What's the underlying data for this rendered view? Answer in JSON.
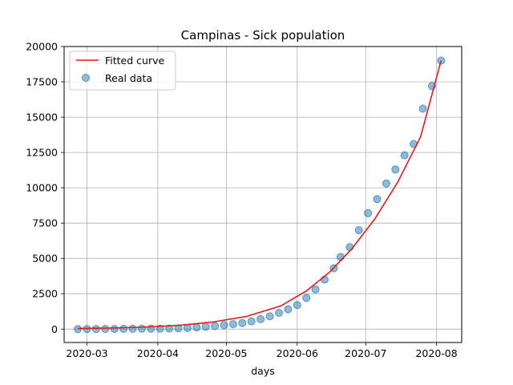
{
  "chart_data": {
    "type": "scatter",
    "title": "Campinas - Sick population",
    "xlabel": "days",
    "ylabel": "",
    "grid": true,
    "legend_position": "top-left",
    "x_axis": {
      "type": "date",
      "range": [
        "2020-02-20",
        "2020-08-12"
      ],
      "ticks": [
        {
          "date": "2020-03-01",
          "label": "2020-03"
        },
        {
          "date": "2020-04-01",
          "label": "2020-04"
        },
        {
          "date": "2020-05-01",
          "label": "2020-05"
        },
        {
          "date": "2020-06-01",
          "label": "2020-06"
        },
        {
          "date": "2020-07-01",
          "label": "2020-07"
        },
        {
          "date": "2020-08-01",
          "label": "2020-08"
        }
      ]
    },
    "y_axis": {
      "range": [
        -950,
        20000
      ],
      "ticks": [
        {
          "value": 0,
          "label": "0"
        },
        {
          "value": 2500,
          "label": "2500"
        },
        {
          "value": 5000,
          "label": "5000"
        },
        {
          "value": 7500,
          "label": "7500"
        },
        {
          "value": 10000,
          "label": "10000"
        },
        {
          "value": 12500,
          "label": "12500"
        },
        {
          "value": 15000,
          "label": "15000"
        },
        {
          "value": 17500,
          "label": "17500"
        },
        {
          "value": 20000,
          "label": "20000"
        }
      ]
    },
    "series": [
      {
        "name": "Fitted curve",
        "kind": "line",
        "color": "#e8191a",
        "points": [
          [
            "2020-02-26",
            40
          ],
          [
            "2020-03-10",
            70
          ],
          [
            "2020-03-25",
            130
          ],
          [
            "2020-04-10",
            260
          ],
          [
            "2020-04-25",
            500
          ],
          [
            "2020-05-10",
            900
          ],
          [
            "2020-05-25",
            1650
          ],
          [
            "2020-06-05",
            2700
          ],
          [
            "2020-06-15",
            4000
          ],
          [
            "2020-06-25",
            5700
          ],
          [
            "2020-07-05",
            7800
          ],
          [
            "2020-07-15",
            10400
          ],
          [
            "2020-07-25",
            13600
          ],
          [
            "2020-08-03",
            19000
          ]
        ]
      },
      {
        "name": "Real data",
        "kind": "scatter",
        "color": "#1f77b4",
        "points": [
          [
            "2020-02-26",
            0
          ],
          [
            "2020-03-01",
            2
          ],
          [
            "2020-03-05",
            5
          ],
          [
            "2020-03-09",
            8
          ],
          [
            "2020-03-13",
            12
          ],
          [
            "2020-03-17",
            15
          ],
          [
            "2020-03-21",
            20
          ],
          [
            "2020-03-25",
            25
          ],
          [
            "2020-03-29",
            30
          ],
          [
            "2020-04-02",
            35
          ],
          [
            "2020-04-06",
            40
          ],
          [
            "2020-04-10",
            55
          ],
          [
            "2020-04-14",
            80
          ],
          [
            "2020-04-18",
            120
          ],
          [
            "2020-04-22",
            170
          ],
          [
            "2020-04-26",
            220
          ],
          [
            "2020-04-30",
            280
          ],
          [
            "2020-05-04",
            350
          ],
          [
            "2020-05-08",
            430
          ],
          [
            "2020-05-12",
            550
          ],
          [
            "2020-05-16",
            700
          ],
          [
            "2020-05-20",
            900
          ],
          [
            "2020-05-24",
            1150
          ],
          [
            "2020-05-28",
            1400
          ],
          [
            "2020-06-01",
            1700
          ],
          [
            "2020-06-05",
            2200
          ],
          [
            "2020-06-09",
            2800
          ],
          [
            "2020-06-13",
            3500
          ],
          [
            "2020-06-17",
            4300
          ],
          [
            "2020-06-20",
            5100
          ],
          [
            "2020-06-24",
            5800
          ],
          [
            "2020-06-28",
            7000
          ],
          [
            "2020-07-02",
            8200
          ],
          [
            "2020-07-06",
            9200
          ],
          [
            "2020-07-10",
            10300
          ],
          [
            "2020-07-14",
            11300
          ],
          [
            "2020-07-18",
            12300
          ],
          [
            "2020-07-22",
            13100
          ],
          [
            "2020-07-26",
            15600
          ],
          [
            "2020-07-30",
            17200
          ],
          [
            "2020-08-03",
            19000
          ]
        ]
      }
    ]
  }
}
